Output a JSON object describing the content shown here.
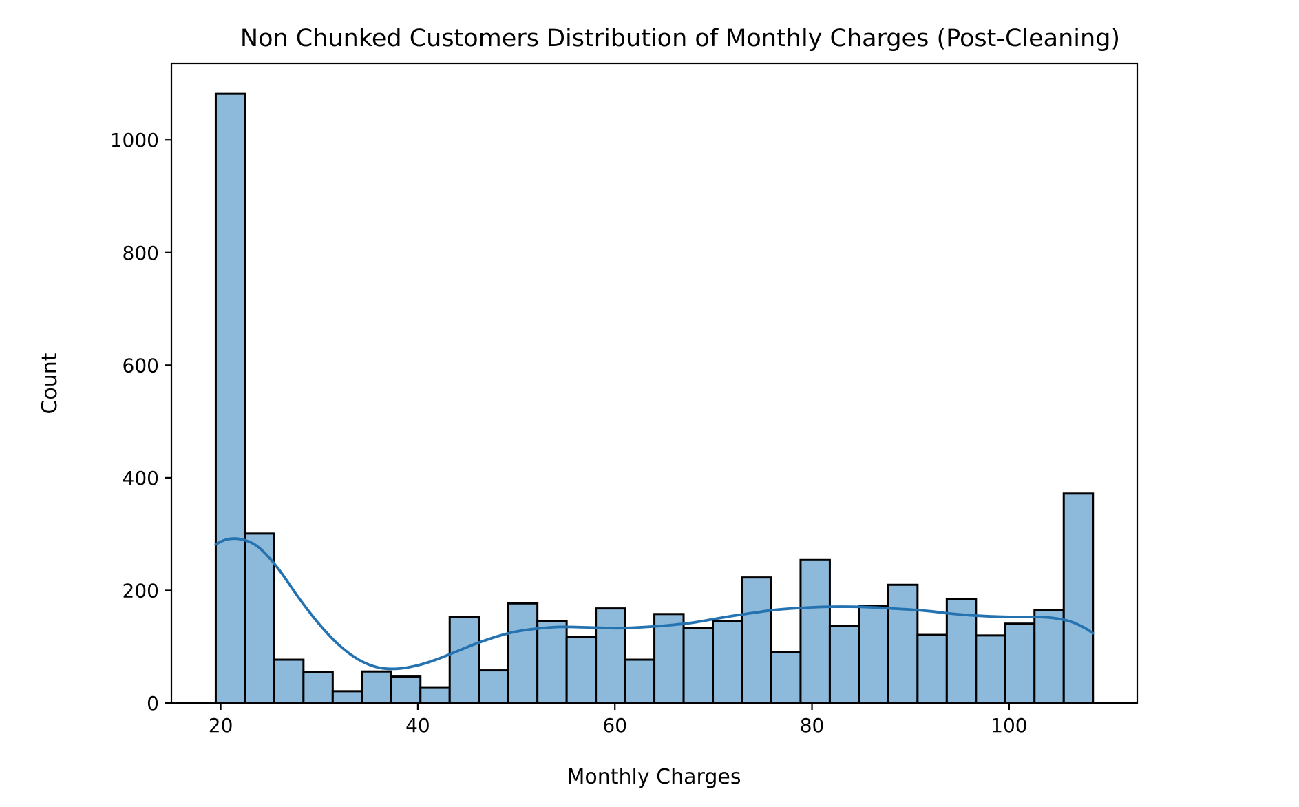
{
  "chart_data": {
    "type": "bar",
    "subtype": "histogram",
    "title": "Non Chunked Customers Distribution of Monthly Charges (Post-Cleaning)",
    "xlabel": "Monthly Charges",
    "ylabel": "Count",
    "xlim": [
      15.0,
      113.0
    ],
    "ylim": [
      0,
      1136
    ],
    "xticks": [
      20,
      40,
      60,
      80,
      100
    ],
    "yticks": [
      0,
      200,
      400,
      600,
      800,
      1000
    ],
    "grid": false,
    "legend": "none",
    "bin_start": 19.5,
    "bin_width": 2.967,
    "counts": [
      1082,
      301,
      77,
      55,
      21,
      56,
      47,
      28,
      153,
      58,
      177,
      146,
      117,
      168,
      77,
      158,
      133,
      145,
      223,
      90,
      254,
      137,
      172,
      210,
      121,
      185,
      120,
      141,
      165,
      372
    ],
    "kde": {
      "x": [
        19.5,
        20.5,
        21.5,
        22.5,
        23.5,
        24.5,
        26,
        28,
        30,
        32,
        34,
        36,
        38,
        40,
        42,
        44,
        46,
        48,
        50,
        52,
        54,
        56,
        58,
        60,
        62,
        64,
        66,
        68,
        70,
        72,
        74,
        76,
        78,
        80,
        82,
        84,
        86,
        88,
        90,
        92,
        94,
        96,
        98,
        100,
        102,
        104,
        106,
        107.5,
        108.5
      ],
      "y": [
        282,
        290,
        292,
        289,
        281,
        266,
        235,
        185,
        140,
        103,
        77,
        63,
        61,
        67,
        78,
        92,
        106,
        118,
        127,
        132,
        135,
        135,
        134,
        133,
        134,
        136,
        139,
        143,
        149,
        155,
        160,
        165,
        168,
        170,
        171,
        171,
        170,
        168,
        166,
        163,
        159,
        156,
        154,
        153,
        153,
        152,
        146,
        135,
        124
      ]
    },
    "colors": {
      "bar_fill": "#8db9da",
      "bar_edge": "#000000",
      "kde_line": "#2572b0"
    }
  }
}
